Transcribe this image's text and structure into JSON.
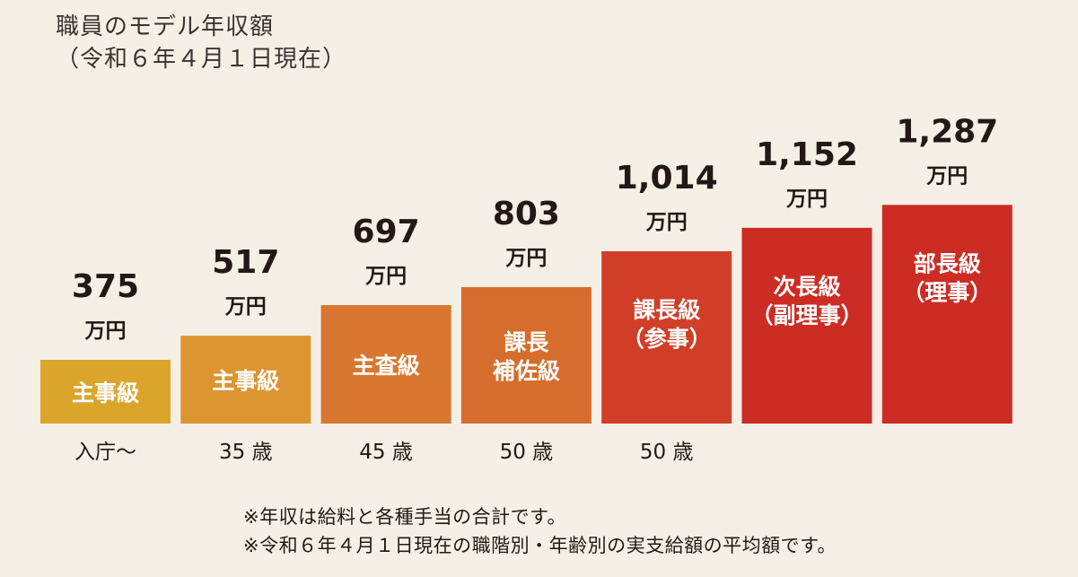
{
  "chart_data": {
    "type": "bar",
    "title": [
      "職員のモデル年収額",
      "（令和６年４月１日現在）"
    ],
    "unit": "万円",
    "ylim": [
      0,
      1300
    ],
    "categories": [
      [
        "主事級"
      ],
      [
        "主事級"
      ],
      [
        "主査級"
      ],
      [
        "課長",
        "補佐級"
      ],
      [
        "課長級",
        "（参事）"
      ],
      [
        "次長級",
        "（副理事）"
      ],
      [
        "部長級",
        "（理事）"
      ]
    ],
    "values": [
      375,
      517,
      697,
      803,
      1014,
      1152,
      1287
    ],
    "value_labels": [
      "375",
      "517",
      "697",
      "803",
      "1,014",
      "1,152",
      "1,287"
    ],
    "ages": [
      "入庁〜",
      "35 歳",
      "45 歳",
      "50 歳",
      "50 歳",
      "",
      ""
    ],
    "colors": [
      "#dba52c",
      "#dc9530",
      "#d9762f",
      "#d66d2c",
      "#d03e28",
      "#cc2c23",
      "#cc2c23"
    ],
    "notes": [
      "※年収は給料と各種手当の合計です。",
      "※令和６年４月１日現在の職階別・年齢別の実支給額の平均額です。"
    ]
  }
}
